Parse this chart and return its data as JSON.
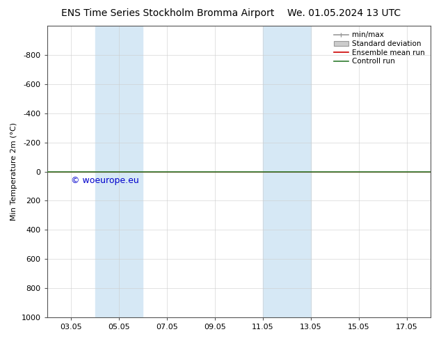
{
  "title_left": "ENS Time Series Stockholm Bromma Airport",
  "title_right": "We. 01.05.2024 13 UTC",
  "ylabel": "Min Temperature 2m (°C)",
  "ylim_top": -1000,
  "ylim_bottom": 1000,
  "yticks": [
    -800,
    -600,
    -400,
    -200,
    0,
    200,
    400,
    600,
    800,
    1000
  ],
  "xtick_labels": [
    "03.05",
    "05.05",
    "07.05",
    "09.05",
    "11.05",
    "13.05",
    "15.05",
    "17.05"
  ],
  "xtick_positions": [
    3,
    5,
    7,
    9,
    11,
    13,
    15,
    17
  ],
  "xlim": [
    2,
    18
  ],
  "blue_shade_ranges": [
    [
      4,
      6
    ],
    [
      11,
      13
    ]
  ],
  "green_line_y": 0,
  "red_line_y": 0,
  "copyright_text": "© woeurope.eu",
  "bg_color": "#ffffff",
  "blue_shade_color": "#d6e8f5",
  "green_line_color": "#2d7a2d",
  "red_line_color": "#cc0000",
  "legend_minmax_color": "#999999",
  "legend_stddev_color": "#cccccc",
  "title_fontsize": 10,
  "label_fontsize": 8,
  "tick_fontsize": 8,
  "legend_fontsize": 7.5,
  "copyright_color": "#0000cc",
  "copyright_fontsize": 9
}
